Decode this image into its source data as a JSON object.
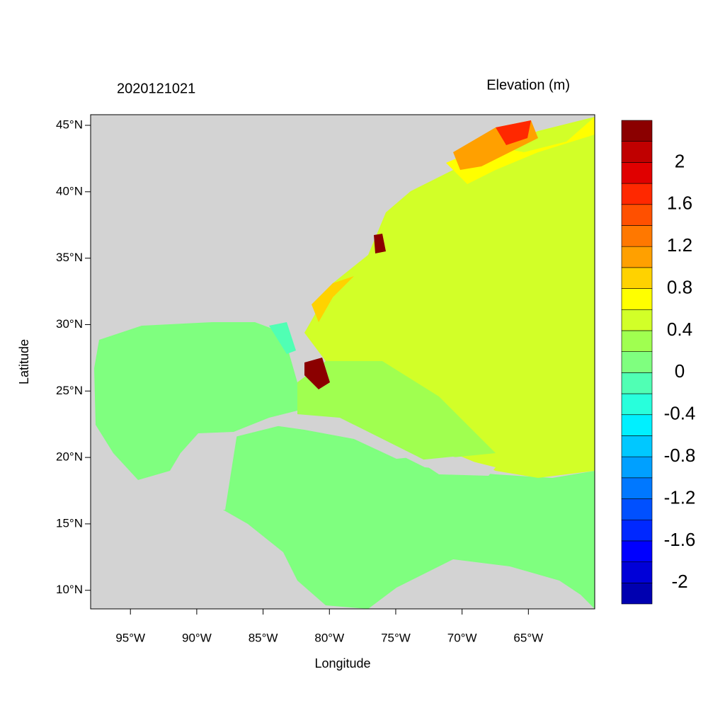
{
  "chart_data": {
    "type": "map",
    "title": "2020121021",
    "subtitle": "Elevation (m)",
    "x_label": "Longitude",
    "y_label": "Latitude",
    "xlim": [
      -98.0,
      -60.0
    ],
    "ylim": [
      8.6,
      45.8
    ],
    "xticks": [
      {
        "value": -95,
        "label": "95°W"
      },
      {
        "value": -90,
        "label": "90°W"
      },
      {
        "value": -85,
        "label": "85°W"
      },
      {
        "value": -80,
        "label": "80°W"
      },
      {
        "value": -75,
        "label": "75°W"
      },
      {
        "value": -70,
        "label": "70°W"
      },
      {
        "value": -65,
        "label": "65°W"
      }
    ],
    "yticks": [
      {
        "value": 10,
        "label": "10°N"
      },
      {
        "value": 15,
        "label": "15°N"
      },
      {
        "value": 20,
        "label": "20°N"
      },
      {
        "value": 25,
        "label": "25°N"
      },
      {
        "value": 30,
        "label": "30°N"
      },
      {
        "value": 35,
        "label": "35°N"
      },
      {
        "value": 40,
        "label": "40°N"
      },
      {
        "value": 45,
        "label": "45°N"
      }
    ],
    "colorbar": {
      "levels": [
        -2,
        -1.8,
        -1.6,
        -1.4,
        -1.2,
        -1,
        -0.8,
        -0.6,
        -0.4,
        -0.2,
        0,
        0.2,
        0.4,
        0.6,
        0.8,
        1,
        1.2,
        1.4,
        1.6,
        1.8,
        2
      ],
      "ticks": [
        -2,
        -1.6,
        -1.2,
        -0.8,
        -0.4,
        0,
        0.4,
        0.8,
        1.2,
        1.6,
        2
      ],
      "colors": [
        "#0000b0",
        "#0000d8",
        "#0000ff",
        "#0028ff",
        "#0050ff",
        "#0078ff",
        "#00a0ff",
        "#00c8ff",
        "#00f0ff",
        "#28ffdc",
        "#50ffb4",
        "#7fff7f",
        "#a0ff50",
        "#d2ff28",
        "#ffff00",
        "#ffd200",
        "#ffa000",
        "#ff7800",
        "#ff5000",
        "#ff2800",
        "#e00000",
        "#c00000",
        "#8b0000"
      ]
    }
  }
}
